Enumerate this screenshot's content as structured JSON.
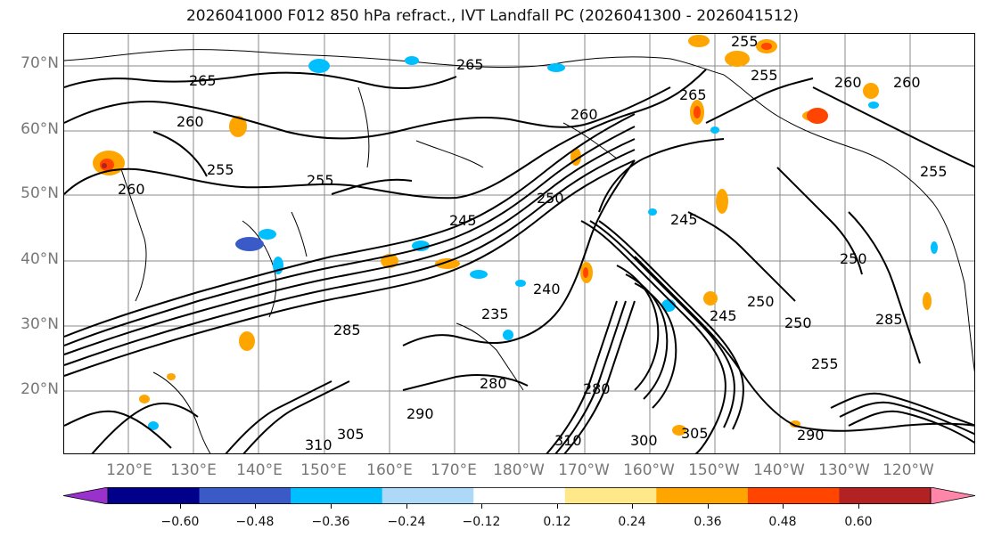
{
  "title": "2026041000 F012 850 hPa refract., IVT Landfall PC (2026041300 - 2026041512)",
  "map": {
    "lat_labels": [
      "70°N",
      "60°N",
      "50°N",
      "40°N",
      "30°N",
      "20°N"
    ],
    "lon_labels": [
      "120°E",
      "130°E",
      "140°E",
      "150°E",
      "160°E",
      "170°E",
      "180°W",
      "170°W",
      "160°W",
      "150°W",
      "140°W",
      "130°W",
      "120°W"
    ],
    "contour_labels": [
      "265",
      "265",
      "260",
      "255",
      "255",
      "260",
      "260",
      "265",
      "250",
      "245",
      "245",
      "240",
      "235",
      "285",
      "280",
      "290",
      "305",
      "310",
      "310",
      "305",
      "300",
      "250",
      "245",
      "250",
      "250",
      "255",
      "255",
      "260",
      "260",
      "255",
      "285",
      "290",
      "280",
      "255"
    ],
    "grid_color": "#8a8a8a",
    "coast_color": "#000000"
  },
  "colorbar": {
    "colors": [
      "#9932cc",
      "#00008b",
      "#3a5bc7",
      "#00bfff",
      "#add8f7",
      "#ffffff",
      "#ffe88a",
      "#ffa500",
      "#ff4500",
      "#b22222",
      "#ff85a9"
    ],
    "tick_labels": [
      "−0.60",
      "−0.48",
      "−0.36",
      "−0.24",
      "−0.12",
      "0.12",
      "0.24",
      "0.36",
      "0.48",
      "0.60"
    ]
  }
}
